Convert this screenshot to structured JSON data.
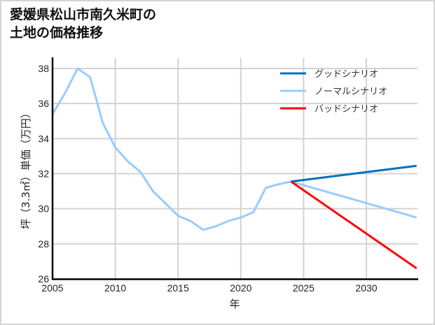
{
  "title": {
    "line1": "愛媛県松山市南久米町の",
    "line2": "土地の価格推移"
  },
  "legend": [
    {
      "label": "グッドシナリオ",
      "color": "#0070C0"
    },
    {
      "label": "ノーマルシナリオ",
      "color": "#99CCFF"
    },
    {
      "label": "バッドシナリオ",
      "color": "#FF0000"
    }
  ],
  "chart_data": {
    "type": "line",
    "title": "愛媛県松山市南久米町の土地の価格推移",
    "xlabel": "年",
    "ylabel": "坪（3.3㎡）単価（万円）",
    "xlim": [
      2005,
      2034
    ],
    "ylim": [
      26,
      38.6
    ],
    "xticks": [
      2005,
      2010,
      2015,
      2020,
      2025,
      2030
    ],
    "yticks": [
      26,
      28,
      30,
      32,
      34,
      36,
      38
    ],
    "grid": true,
    "legend_position": "upper right",
    "series": [
      {
        "name": "グッドシナリオ",
        "color": "#0070C0",
        "x": [
          2024,
          2034
        ],
        "values": [
          31.55,
          32.45
        ]
      },
      {
        "name": "ノーマルシナリオ",
        "color": "#99CCFF",
        "x": [
          2005,
          2006,
          2007,
          2008,
          2009,
          2010,
          2011,
          2012,
          2013,
          2014,
          2015,
          2016,
          2017,
          2018,
          2019,
          2020,
          2021,
          2022,
          2023,
          2024,
          2034
        ],
        "values": [
          35.4,
          36.6,
          38.0,
          37.5,
          34.9,
          33.5,
          32.7,
          32.1,
          31.0,
          30.3,
          29.6,
          29.3,
          28.8,
          29.0,
          29.3,
          29.5,
          29.8,
          31.2,
          31.4,
          31.55,
          29.5
        ]
      },
      {
        "name": "バッドシナリオ",
        "color": "#FF0000",
        "x": [
          2024,
          2034
        ],
        "values": [
          31.55,
          26.6
        ]
      }
    ]
  }
}
